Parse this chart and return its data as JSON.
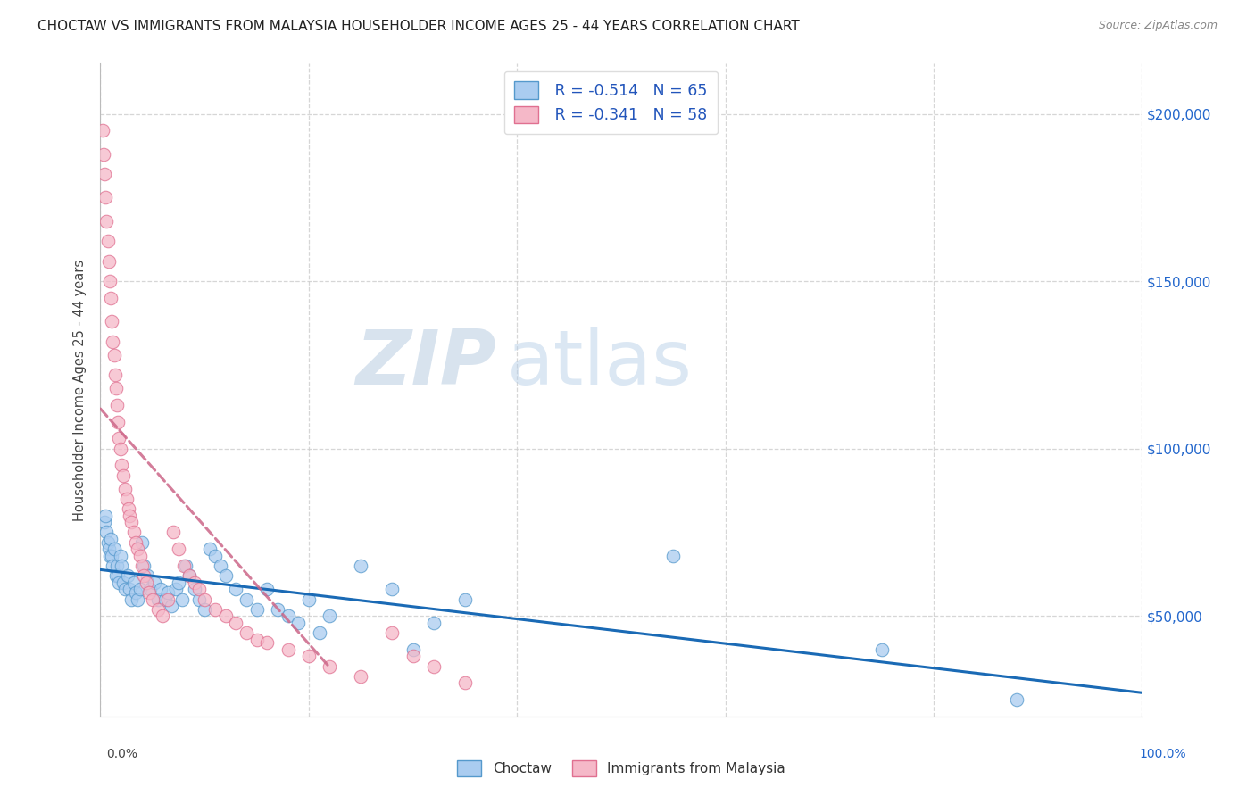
{
  "title": "CHOCTAW VS IMMIGRANTS FROM MALAYSIA HOUSEHOLDER INCOME AGES 25 - 44 YEARS CORRELATION CHART",
  "source": "Source: ZipAtlas.com",
  "ylabel": "Householder Income Ages 25 - 44 years",
  "ytick_values": [
    50000,
    100000,
    150000,
    200000
  ],
  "ylim": [
    20000,
    215000
  ],
  "xlim": [
    0.0,
    1.0
  ],
  "choctaw_color": "#aaccf0",
  "choctaw_edge_color": "#5599cc",
  "malaysia_color": "#f5b8c8",
  "malaysia_edge_color": "#e07090",
  "trend_blue": "#1a6ab5",
  "trend_pink": "#cc6688",
  "legend_R_choctaw": "R = -0.514",
  "legend_N_choctaw": "N = 65",
  "legend_R_malaysia": "R = -0.341",
  "legend_N_malaysia": "N = 58",
  "watermark_zip": "ZIP",
  "watermark_atlas": "atlas",
  "choctaw_x": [
    0.004,
    0.005,
    0.006,
    0.007,
    0.008,
    0.009,
    0.01,
    0.011,
    0.012,
    0.013,
    0.015,
    0.016,
    0.017,
    0.018,
    0.019,
    0.02,
    0.022,
    0.024,
    0.026,
    0.028,
    0.03,
    0.032,
    0.034,
    0.036,
    0.038,
    0.04,
    0.042,
    0.045,
    0.048,
    0.052,
    0.055,
    0.058,
    0.062,
    0.065,
    0.068,
    0.072,
    0.075,
    0.078,
    0.082,
    0.085,
    0.09,
    0.095,
    0.1,
    0.105,
    0.11,
    0.115,
    0.12,
    0.13,
    0.14,
    0.15,
    0.16,
    0.17,
    0.18,
    0.19,
    0.2,
    0.21,
    0.22,
    0.25,
    0.28,
    0.3,
    0.32,
    0.35,
    0.55,
    0.75,
    0.88
  ],
  "choctaw_y": [
    78000,
    80000,
    75000,
    72000,
    70000,
    68000,
    73000,
    68000,
    65000,
    70000,
    62000,
    65000,
    62000,
    60000,
    68000,
    65000,
    60000,
    58000,
    62000,
    58000,
    55000,
    60000,
    57000,
    55000,
    58000,
    72000,
    65000,
    62000,
    58000,
    60000,
    55000,
    58000,
    55000,
    57000,
    53000,
    58000,
    60000,
    55000,
    65000,
    62000,
    58000,
    55000,
    52000,
    70000,
    68000,
    65000,
    62000,
    58000,
    55000,
    52000,
    58000,
    52000,
    50000,
    48000,
    55000,
    45000,
    50000,
    65000,
    58000,
    40000,
    48000,
    55000,
    68000,
    40000,
    25000
  ],
  "malaysia_x": [
    0.002,
    0.003,
    0.004,
    0.005,
    0.006,
    0.007,
    0.008,
    0.009,
    0.01,
    0.011,
    0.012,
    0.013,
    0.014,
    0.015,
    0.016,
    0.017,
    0.018,
    0.019,
    0.02,
    0.022,
    0.024,
    0.025,
    0.027,
    0.028,
    0.03,
    0.032,
    0.034,
    0.036,
    0.038,
    0.04,
    0.042,
    0.044,
    0.047,
    0.05,
    0.055,
    0.06,
    0.065,
    0.07,
    0.075,
    0.08,
    0.085,
    0.09,
    0.095,
    0.1,
    0.11,
    0.12,
    0.13,
    0.14,
    0.15,
    0.16,
    0.18,
    0.2,
    0.22,
    0.25,
    0.28,
    0.3,
    0.32,
    0.35
  ],
  "malaysia_y": [
    195000,
    188000,
    182000,
    175000,
    168000,
    162000,
    156000,
    150000,
    145000,
    138000,
    132000,
    128000,
    122000,
    118000,
    113000,
    108000,
    103000,
    100000,
    95000,
    92000,
    88000,
    85000,
    82000,
    80000,
    78000,
    75000,
    72000,
    70000,
    68000,
    65000,
    62000,
    60000,
    57000,
    55000,
    52000,
    50000,
    55000,
    75000,
    70000,
    65000,
    62000,
    60000,
    58000,
    55000,
    52000,
    50000,
    48000,
    45000,
    43000,
    42000,
    40000,
    38000,
    35000,
    32000,
    45000,
    38000,
    35000,
    30000
  ],
  "trend_blue_x0": 0.0,
  "trend_blue_y0": 75000,
  "trend_blue_x1": 1.0,
  "trend_blue_y1": 22000,
  "trend_pink_x0": 0.0,
  "trend_pink_y0": 120000,
  "trend_pink_x1": 0.16,
  "trend_pink_y1": 60000
}
